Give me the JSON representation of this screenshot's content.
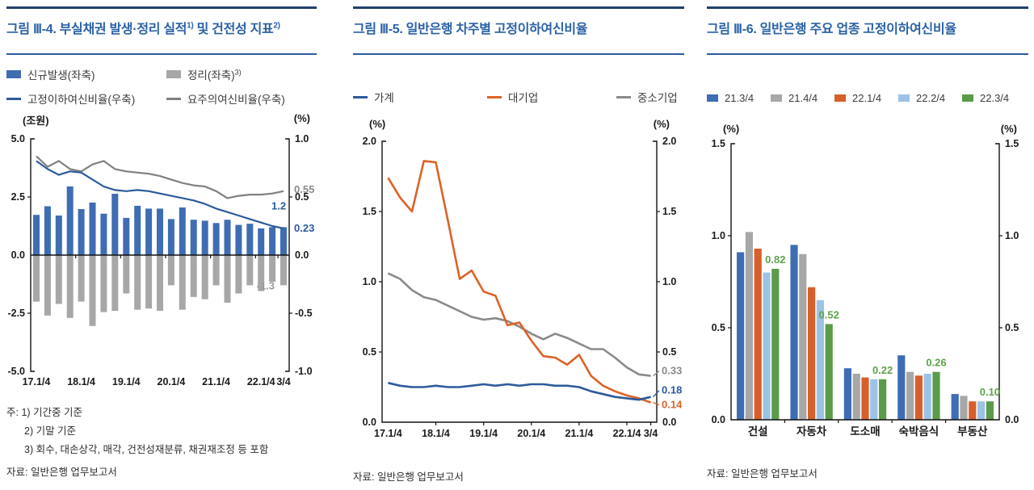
{
  "colors": {
    "rule": "#20406B",
    "title": "#2A61A5",
    "axis": "#111111",
    "bar_label_green": "#5FA14D",
    "gray_label": "#8a8a8a"
  },
  "chart_data": [
    {
      "id": "fig-III-4",
      "type": "bar+line",
      "title": "그림 Ⅲ-4. 부실채권 발생·정리 실적1) 및 건전성 지표2)",
      "title_parts": {
        "main": "그림 Ⅲ-4. 부실채권 발생·정리 실적",
        "sup_a": "1)",
        "mid": " 및 건전성 지표",
        "sup_b": "2)"
      },
      "legend": [
        {
          "label": "신규발생(좌축)",
          "sup": ""
        },
        {
          "label": "정리(좌축)",
          "sup": "3)"
        },
        {
          "label": "고정이하여신비율(우축)",
          "sup": ""
        },
        {
          "label": "요주의여신비율(우축)",
          "sup": ""
        }
      ],
      "unit_left": "(조원)",
      "unit_right": "(%)",
      "x_tick_labels": [
        "17.1/4",
        "18.1/4",
        "19.1/4",
        "20.1/4",
        "21.1/4",
        "22.1/4",
        "3/4"
      ],
      "x_tick_positions": [
        0,
        4,
        8,
        12,
        16,
        20,
        22
      ],
      "ylim_left": [
        -5,
        5
      ],
      "yticks_left": [
        {
          "v": 5,
          "t": "5.0"
        },
        {
          "v": 2.5,
          "t": "2.5"
        },
        {
          "v": 0,
          "t": "0.0"
        },
        {
          "v": -2.5,
          "t": "-2.5"
        },
        {
          "v": -5,
          "t": "-5.0"
        }
      ],
      "ylim_right": [
        -1,
        1
      ],
      "yticks_right": [
        {
          "v": 1,
          "t": "1.0"
        },
        {
          "v": 0.5,
          "t": "0.5"
        },
        {
          "v": 0,
          "t": "0.0"
        },
        {
          "v": -0.5,
          "t": "-0.5"
        },
        {
          "v": -1,
          "t": "-1.0"
        }
      ],
      "series": [
        {
          "name": "신규발생(좌축)",
          "type": "bar",
          "axis": "left",
          "color": "#3E6DB3",
          "values": [
            1.73,
            2.1,
            1.7,
            2.95,
            1.98,
            2.26,
            1.78,
            2.64,
            1.6,
            2.12,
            2.0,
            2.0,
            1.55,
            2.05,
            1.52,
            1.48,
            1.38,
            1.52,
            1.3,
            1.35,
            1.15,
            1.2,
            1.2
          ]
        },
        {
          "name": "정리(좌축)3)",
          "type": "bar",
          "axis": "left",
          "color": "#A7A7A7",
          "values": [
            -2.0,
            -2.6,
            -2.1,
            -2.7,
            -2.0,
            -3.05,
            -2.45,
            -2.4,
            -1.65,
            -2.35,
            -2.3,
            -2.4,
            -1.3,
            -2.35,
            -1.8,
            -1.9,
            -1.3,
            -2.05,
            -1.65,
            -1.3,
            -1.55,
            -1.15,
            -1.3
          ]
        },
        {
          "name": "고정이하여신비율(우축)",
          "type": "line",
          "axis": "right",
          "color": "#2D5A9B",
          "values": [
            0.81,
            0.74,
            0.69,
            0.72,
            0.71,
            0.65,
            0.59,
            0.56,
            0.55,
            0.56,
            0.55,
            0.53,
            0.51,
            0.49,
            0.47,
            0.44,
            0.4,
            0.37,
            0.34,
            0.31,
            0.28,
            0.25,
            0.23
          ]
        },
        {
          "name": "요주의여신비율(우축)",
          "type": "line",
          "axis": "right",
          "color": "#808080",
          "values": [
            0.85,
            0.76,
            0.81,
            0.74,
            0.72,
            0.78,
            0.81,
            0.74,
            0.72,
            0.71,
            0.7,
            0.68,
            0.65,
            0.62,
            0.6,
            0.59,
            0.55,
            0.49,
            0.51,
            0.52,
            0.52,
            0.53,
            0.55
          ]
        }
      ],
      "value_labels": {
        "bar_new": "1.2",
        "bar_res": "-1.3",
        "line_fixed": "0.23",
        "line_watch": "0.55"
      },
      "notes": [
        "주: 1) 기간중 기준",
        "2) 기말 기준",
        "3) 회수, 대손상각, 매각, 건전성재분류, 채권재조정 등 포함"
      ],
      "source": "자료: 일반은행 업무보고서"
    },
    {
      "id": "fig-III-5",
      "type": "line",
      "title": "그림 Ⅲ-5. 일반은행 차주별 고정이하여신비율",
      "unit_left": "(%)",
      "unit_right": "(%)",
      "x_tick_labels": [
        "17.1/4",
        "18.1/4",
        "19.1/4",
        "20.1/4",
        "21.1/4",
        "22.1/4",
        "3/4"
      ],
      "x_tick_positions": [
        0,
        4,
        8,
        12,
        16,
        20,
        22
      ],
      "ylim": [
        0,
        2
      ],
      "yticks": [
        {
          "v": 2,
          "t": "2.0"
        },
        {
          "v": 1.5,
          "t": "1.5"
        },
        {
          "v": 1,
          "t": "1.0"
        },
        {
          "v": 0.5,
          "t": "0.5"
        },
        {
          "v": 0,
          "t": "0.0"
        }
      ],
      "series": [
        {
          "name": "가계",
          "color": "#2D5A9B",
          "values": [
            0.28,
            0.26,
            0.25,
            0.25,
            0.26,
            0.25,
            0.25,
            0.26,
            0.27,
            0.26,
            0.27,
            0.26,
            0.27,
            0.27,
            0.26,
            0.26,
            0.25,
            0.22,
            0.2,
            0.18,
            0.17,
            0.16,
            0.18
          ]
        },
        {
          "name": "대기업",
          "color": "#DD6227",
          "values": [
            1.74,
            1.6,
            1.5,
            1.86,
            1.85,
            1.44,
            1.02,
            1.08,
            0.93,
            0.9,
            0.69,
            0.71,
            0.58,
            0.47,
            0.46,
            0.41,
            0.48,
            0.33,
            0.26,
            0.22,
            0.19,
            0.17,
            0.14
          ]
        },
        {
          "name": "중소기업",
          "color": "#8A8A8A",
          "values": [
            1.06,
            1.02,
            0.94,
            0.89,
            0.87,
            0.83,
            0.79,
            0.75,
            0.73,
            0.74,
            0.72,
            0.68,
            0.63,
            0.59,
            0.63,
            0.6,
            0.56,
            0.52,
            0.52,
            0.46,
            0.39,
            0.34,
            0.33
          ]
        }
      ],
      "end_labels": [
        {
          "text": "0.33",
          "series": 2,
          "dy": -2
        },
        {
          "text": "0.18",
          "series": 0,
          "dy": -4
        },
        {
          "text": "0.14",
          "series": 1,
          "dy": 7
        }
      ],
      "source": "자료: 일반은행 업무보고서"
    },
    {
      "id": "fig-III-6",
      "type": "grouped-bar",
      "title": "그림 Ⅲ-6. 일반은행 주요 업종 고정이하여신비율",
      "unit_left": "(%)",
      "unit_right": "(%)",
      "categories": [
        "건설",
        "자동차",
        "도소매",
        "숙박음식",
        "부동산"
      ],
      "ylim": [
        0,
        1.5
      ],
      "yticks": [
        {
          "v": 1.5,
          "t": "1.5"
        },
        {
          "v": 1,
          "t": "1.0"
        },
        {
          "v": 0.5,
          "t": "0.5"
        },
        {
          "v": 0,
          "t": "0.0"
        }
      ],
      "series": [
        {
          "name": "21.3/4",
          "color": "#3E6DB3",
          "values": [
            0.91,
            0.95,
            0.28,
            0.35,
            0.14
          ]
        },
        {
          "name": "21.4/4",
          "color": "#A7A7A7",
          "values": [
            1.02,
            0.9,
            0.25,
            0.26,
            0.13
          ]
        },
        {
          "name": "22.1/4",
          "color": "#D75F2B",
          "values": [
            0.93,
            0.72,
            0.23,
            0.24,
            0.1
          ]
        },
        {
          "name": "22.2/4",
          "color": "#9CC3E5",
          "values": [
            0.8,
            0.65,
            0.22,
            0.25,
            0.1
          ]
        },
        {
          "name": "22.3/4",
          "color": "#5B9B4A",
          "values": [
            0.82,
            0.52,
            0.22,
            0.26,
            0.1
          ]
        }
      ],
      "bar_labels": [
        "0.82",
        "0.52",
        "0.22",
        "0.26",
        "0.10"
      ],
      "source": "자료: 일반은행 업무보고서"
    }
  ]
}
